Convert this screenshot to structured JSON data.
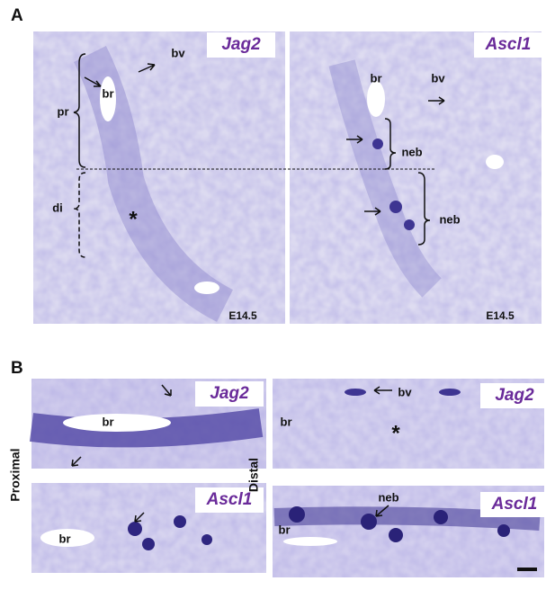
{
  "panel_a": {
    "label": "A",
    "images": [
      {
        "gene": "Jag2",
        "stage": "E14.5",
        "labels": [
          "br",
          "bv",
          "pr",
          "di",
          "*"
        ]
      },
      {
        "gene": "Ascl1",
        "stage": "E14.5",
        "labels": [
          "br",
          "bv",
          "neb",
          "neb"
        ]
      }
    ]
  },
  "panel_b": {
    "label": "B",
    "row_labels": [
      "Proximal",
      "Distal"
    ],
    "images": [
      {
        "gene": "Jag2",
        "labels": [
          "br"
        ]
      },
      {
        "gene": "Ascl1",
        "labels": [
          "br"
        ]
      },
      {
        "gene": "Jag2",
        "labels": [
          "bv",
          "br",
          "*"
        ]
      },
      {
        "gene": "Ascl1",
        "labels": [
          "neb",
          "br"
        ]
      }
    ]
  }
}
